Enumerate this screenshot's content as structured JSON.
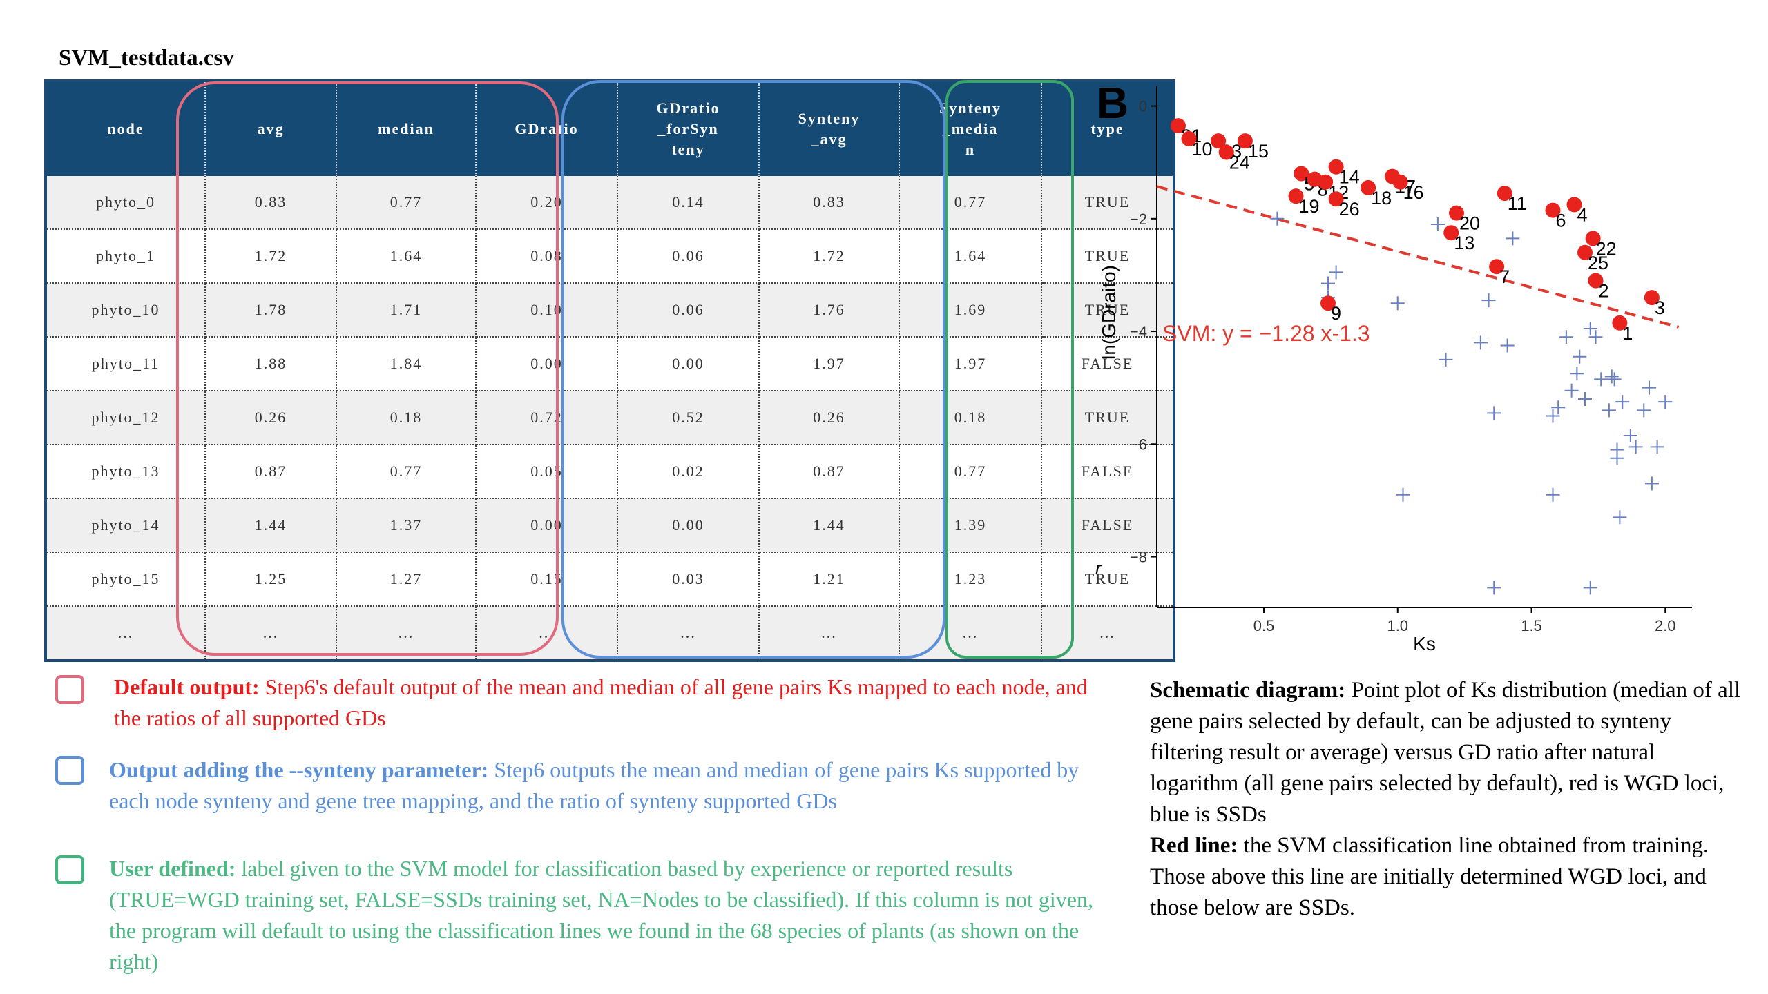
{
  "file_title": "SVM_testdata.csv",
  "table": {
    "headers": [
      "node",
      "avg",
      "median",
      "GDratio",
      "GDratio\n_forSyn\nteny",
      "Synteny\n_avg",
      "Synteny\n_media\nn",
      "type"
    ],
    "rows": [
      [
        "phyto_0",
        "0.83",
        "0.77",
        "0.20",
        "0.14",
        "0.83",
        "0.77",
        "TRUE"
      ],
      [
        "phyto_1",
        "1.72",
        "1.64",
        "0.08",
        "0.06",
        "1.72",
        "1.64",
        "TRUE"
      ],
      [
        "phyto_10",
        "1.78",
        "1.71",
        "0.10",
        "0.06",
        "1.76",
        "1.69",
        "TRUE"
      ],
      [
        "phyto_11",
        "1.88",
        "1.84",
        "0.00",
        "0.00",
        "1.97",
        "1.97",
        "FALSE"
      ],
      [
        "phyto_12",
        "0.26",
        "0.18",
        "0.72",
        "0.52",
        "0.26",
        "0.18",
        "TRUE"
      ],
      [
        "phyto_13",
        "0.87",
        "0.77",
        "0.05",
        "0.02",
        "0.87",
        "0.77",
        "FALSE"
      ],
      [
        "phyto_14",
        "1.44",
        "1.37",
        "0.00",
        "0.00",
        "1.44",
        "1.39",
        "FALSE"
      ],
      [
        "phyto_15",
        "1.25",
        "1.27",
        "0.15",
        "0.03",
        "1.21",
        "1.23",
        "TRUE"
      ],
      [
        "...",
        "...",
        "...",
        "...",
        "...",
        "...",
        "...",
        "..."
      ]
    ]
  },
  "legend": {
    "default": {
      "title": "Default output:",
      "text": "Step6's default output of the mean and median of all gene pairs Ks mapped to each node, and the ratios of all supported GDs",
      "color": "#e31e1e"
    },
    "synteny": {
      "title": "Output adding the --synteny parameter:",
      "text": "Step6 outputs the mean and median of  gene pairs Ks supported by each node synteny and gene tree mapping, and the ratio of synteny supported GDs",
      "color": "#5b8fd8"
    },
    "user": {
      "title": "User defined:",
      "text": "label given to the SVM model for classification based by experience or reported results (TRUE=WGD training set, FALSE=SSDs training set, NA=Nodes to be classified). If this column is not given, the program will default to using the classification lines we found in the 68 species of plants (as shown on the right)",
      "color": "#4cb884"
    }
  },
  "panel_letter": "B",
  "stray_mark": "r",
  "chart_data": {
    "type": "scatter",
    "xlabel": "Ks",
    "ylabel": "ln(GDraito)",
    "xlim": [
      0.1,
      2.1
    ],
    "ylim": [
      -8.9,
      0.35
    ],
    "xticks": [
      0.5,
      1.0,
      1.5,
      2.0
    ],
    "xtick_labels": [
      "0.5",
      "1.0",
      "1.5",
      "2.0"
    ],
    "yticks": [
      0,
      -2,
      -4,
      -6,
      -8
    ],
    "ytick_labels": [
      "0",
      "−2",
      "−4",
      "−6",
      "−8"
    ],
    "wgd_color": "#e8221c",
    "ssd_color": "#6a7fbf",
    "line_color": "#e03a30",
    "svm_line": {
      "slope": -1.28,
      "intercept": -1.3,
      "label": "SVM: y = −1.28 x-1.3"
    },
    "wgd_points": [
      {
        "x": 0.18,
        "y": -0.35,
        "label": "21"
      },
      {
        "x": 0.22,
        "y": -0.58,
        "label": "10"
      },
      {
        "x": 0.33,
        "y": -0.62,
        "label": "23"
      },
      {
        "x": 0.36,
        "y": -0.82,
        "label": "24"
      },
      {
        "x": 0.43,
        "y": -0.62,
        "label": "15"
      },
      {
        "x": 0.62,
        "y": -1.6,
        "label": "19"
      },
      {
        "x": 0.64,
        "y": -1.2,
        "label": "5"
      },
      {
        "x": 0.69,
        "y": -1.3,
        "label": "8"
      },
      {
        "x": 0.73,
        "y": -1.35,
        "label": "12"
      },
      {
        "x": 0.77,
        "y": -1.08,
        "label": "14"
      },
      {
        "x": 0.77,
        "y": -1.65,
        "label": "26"
      },
      {
        "x": 0.89,
        "y": -1.45,
        "label": "18"
      },
      {
        "x": 0.98,
        "y": -1.25,
        "label": "17"
      },
      {
        "x": 1.01,
        "y": -1.35,
        "label": "16"
      },
      {
        "x": 1.2,
        "y": -2.25,
        "label": "13"
      },
      {
        "x": 1.22,
        "y": -1.9,
        "label": "20"
      },
      {
        "x": 1.37,
        "y": -2.85,
        "label": "7"
      },
      {
        "x": 1.4,
        "y": -1.55,
        "label": "11"
      },
      {
        "x": 1.58,
        "y": -1.85,
        "label": "6"
      },
      {
        "x": 1.66,
        "y": -1.75,
        "label": "4"
      },
      {
        "x": 1.7,
        "y": -2.6,
        "label": "25"
      },
      {
        "x": 1.73,
        "y": -2.35,
        "label": "22"
      },
      {
        "x": 1.74,
        "y": -3.1,
        "label": "2"
      },
      {
        "x": 1.83,
        "y": -3.85,
        "label": "1"
      },
      {
        "x": 1.95,
        "y": -3.4,
        "label": "3"
      },
      {
        "x": 0.74,
        "y": -3.5,
        "label": "9"
      }
    ],
    "ssd_points": [
      {
        "x": 0.55,
        "y": -2.0
      },
      {
        "x": 0.74,
        "y": -3.15
      },
      {
        "x": 0.77,
        "y": -2.95
      },
      {
        "x": 0.74,
        "y": -3.4
      },
      {
        "x": 1.0,
        "y": -3.5
      },
      {
        "x": 1.02,
        "y": -6.9
      },
      {
        "x": 1.15,
        "y": -2.1
      },
      {
        "x": 1.18,
        "y": -4.5
      },
      {
        "x": 1.31,
        "y": -4.2
      },
      {
        "x": 1.34,
        "y": -3.45
      },
      {
        "x": 1.36,
        "y": -5.45
      },
      {
        "x": 1.36,
        "y": -8.55
      },
      {
        "x": 1.41,
        "y": -4.25
      },
      {
        "x": 1.43,
        "y": -2.35
      },
      {
        "x": 1.58,
        "y": -5.5
      },
      {
        "x": 1.58,
        "y": -6.9
      },
      {
        "x": 1.6,
        "y": -5.35
      },
      {
        "x": 1.63,
        "y": -4.1
      },
      {
        "x": 1.65,
        "y": -5.05
      },
      {
        "x": 1.67,
        "y": -4.75
      },
      {
        "x": 1.68,
        "y": -4.45
      },
      {
        "x": 1.7,
        "y": -5.2
      },
      {
        "x": 1.72,
        "y": -3.95
      },
      {
        "x": 1.72,
        "y": -8.55
      },
      {
        "x": 1.74,
        "y": -4.1
      },
      {
        "x": 1.76,
        "y": -4.85
      },
      {
        "x": 1.79,
        "y": -5.4
      },
      {
        "x": 1.8,
        "y": -4.8
      },
      {
        "x": 1.81,
        "y": -4.85
      },
      {
        "x": 1.82,
        "y": -6.1
      },
      {
        "x": 1.82,
        "y": -6.25
      },
      {
        "x": 1.83,
        "y": -7.3
      },
      {
        "x": 1.84,
        "y": -5.25
      },
      {
        "x": 1.87,
        "y": -5.85
      },
      {
        "x": 1.89,
        "y": -6.05
      },
      {
        "x": 1.92,
        "y": -5.4
      },
      {
        "x": 1.94,
        "y": -5.0
      },
      {
        "x": 1.95,
        "y": -6.7
      },
      {
        "x": 1.97,
        "y": -6.05
      },
      {
        "x": 2.0,
        "y": -5.25
      }
    ]
  },
  "caption": {
    "schematic_title": "Schematic diagram:",
    "schematic_text": "Point plot of Ks distribution (median of all gene pairs selected by default, can be adjusted to synteny filtering result or average) versus GD ratio after natural logarithm (all gene pairs selected by default), red is WGD loci, blue is SSDs",
    "redline_title": "Red line:",
    "redline_text": "the SVM classification line obtained from training. Those above this line are initially determined WGD loci, and those below are SSDs."
  }
}
